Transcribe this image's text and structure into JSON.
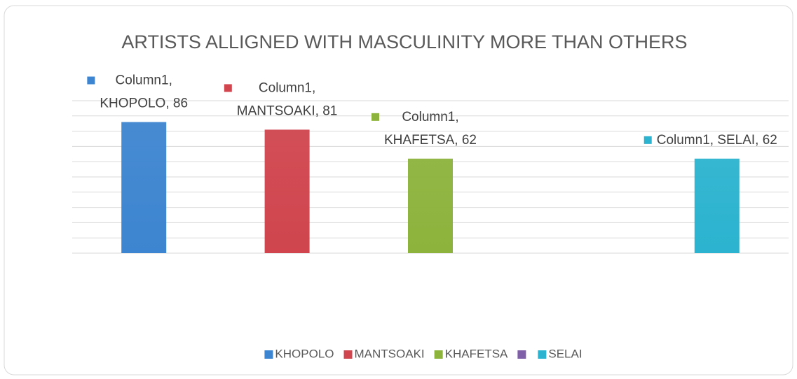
{
  "chart_data": {
    "type": "bar",
    "title": "ARTISTS ALLIGNED WITH MASCULINITY MORE THAN OTHERS",
    "categories": [
      "KHOPOLO",
      "MANTSOAKI",
      "KHAFETSA",
      null,
      "SELAI"
    ],
    "values": [
      86,
      81,
      62,
      null,
      62
    ],
    "value_labels": [
      "Column1, KHOPOLO, 86",
      "Column1, MANTSOAKI, 81",
      "Column1, KHAFETSA, 62",
      null,
      "Column1, SELAI, 62"
    ],
    "colors": [
      "#3d85d0",
      "#d0454e",
      "#8db33c",
      "#7f5fa8",
      "#2bb3cf"
    ],
    "ylim": [
      0,
      100
    ],
    "yticks": [
      0,
      10,
      20,
      30,
      40,
      50,
      60,
      70,
      80,
      90,
      100
    ],
    "grid": true,
    "legend": "bottom"
  }
}
